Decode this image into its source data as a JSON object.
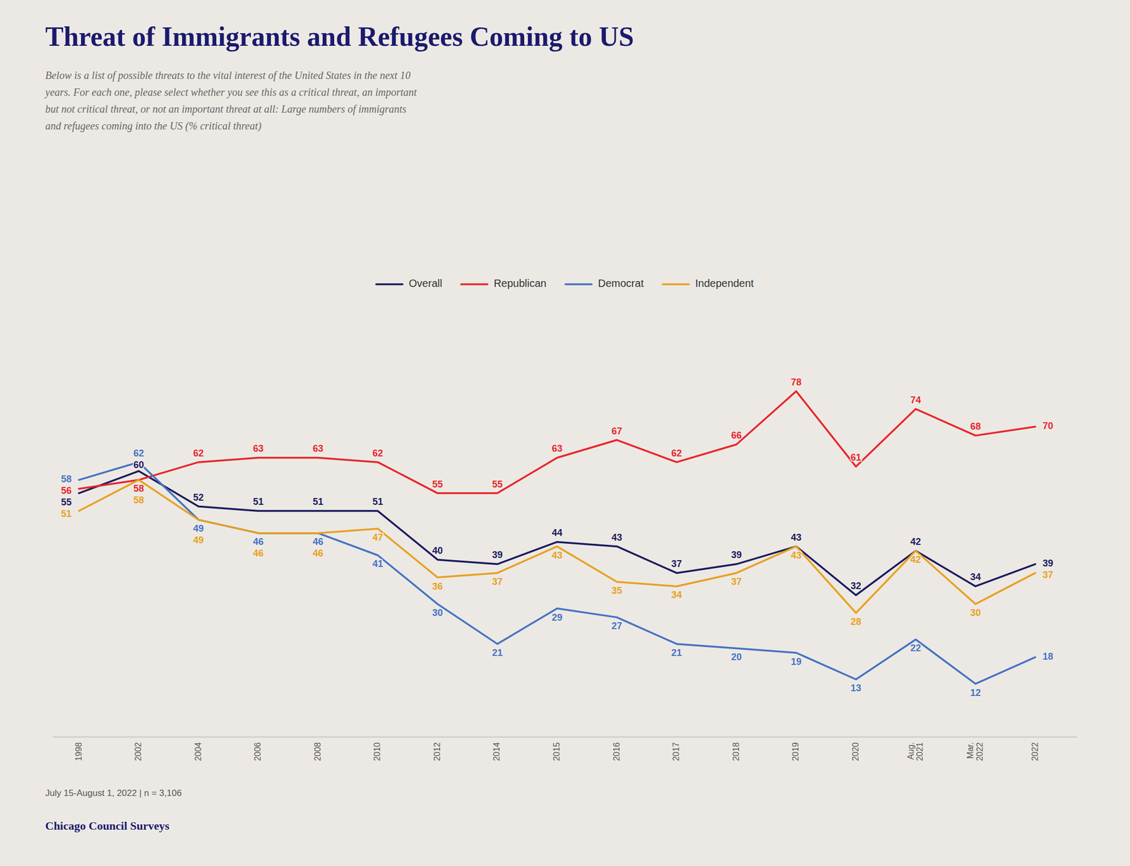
{
  "chart_data": {
    "type": "line",
    "title": "Threat of Immigrants and Refugees Coming to US",
    "subtitle": "Below is a list of possible threats to the vital interest of the United States in the next 10\nyears. For each one, please select whether you see this as a critical threat, an important\nbut not critical threat, or not an important threat at all: Large numbers of immigrants\nand refugees coming into the US (% critical threat)",
    "footnote": "July 15-August 1, 2022 | n = 3,106",
    "source": "Chicago Council Surveys",
    "categories": [
      "1998",
      "2002",
      "2004",
      "2006",
      "2008",
      "2010",
      "2012",
      "2014",
      "2015",
      "2016",
      "2017",
      "2018",
      "2019",
      "2020",
      "Aug.\n2021",
      "Mar.\n2022",
      "2022"
    ],
    "series": [
      {
        "name": "Overall",
        "color": "#1a1a5e",
        "values": [
          55,
          60,
          52,
          51,
          51,
          51,
          40,
          39,
          44,
          43,
          37,
          39,
          43,
          32,
          42,
          34,
          39
        ]
      },
      {
        "name": "Republican",
        "color": "#e8252a",
        "values": [
          56,
          58,
          62,
          63,
          63,
          62,
          55,
          55,
          63,
          67,
          62,
          66,
          78,
          61,
          74,
          68,
          70
        ]
      },
      {
        "name": "Democrat",
        "color": "#4472c4",
        "values": [
          58,
          62,
          49,
          46,
          46,
          41,
          30,
          21,
          29,
          27,
          21,
          20,
          19,
          13,
          22,
          12,
          18
        ]
      },
      {
        "name": "Independent",
        "color": "#e8a020",
        "values": [
          51,
          58,
          49,
          46,
          46,
          47,
          36,
          37,
          43,
          35,
          34,
          37,
          43,
          28,
          42,
          30,
          37
        ]
      }
    ],
    "ylim": [
      0,
      95
    ],
    "grid": false,
    "legend": "top",
    "data_labels": true,
    "tick_labels": "x"
  }
}
